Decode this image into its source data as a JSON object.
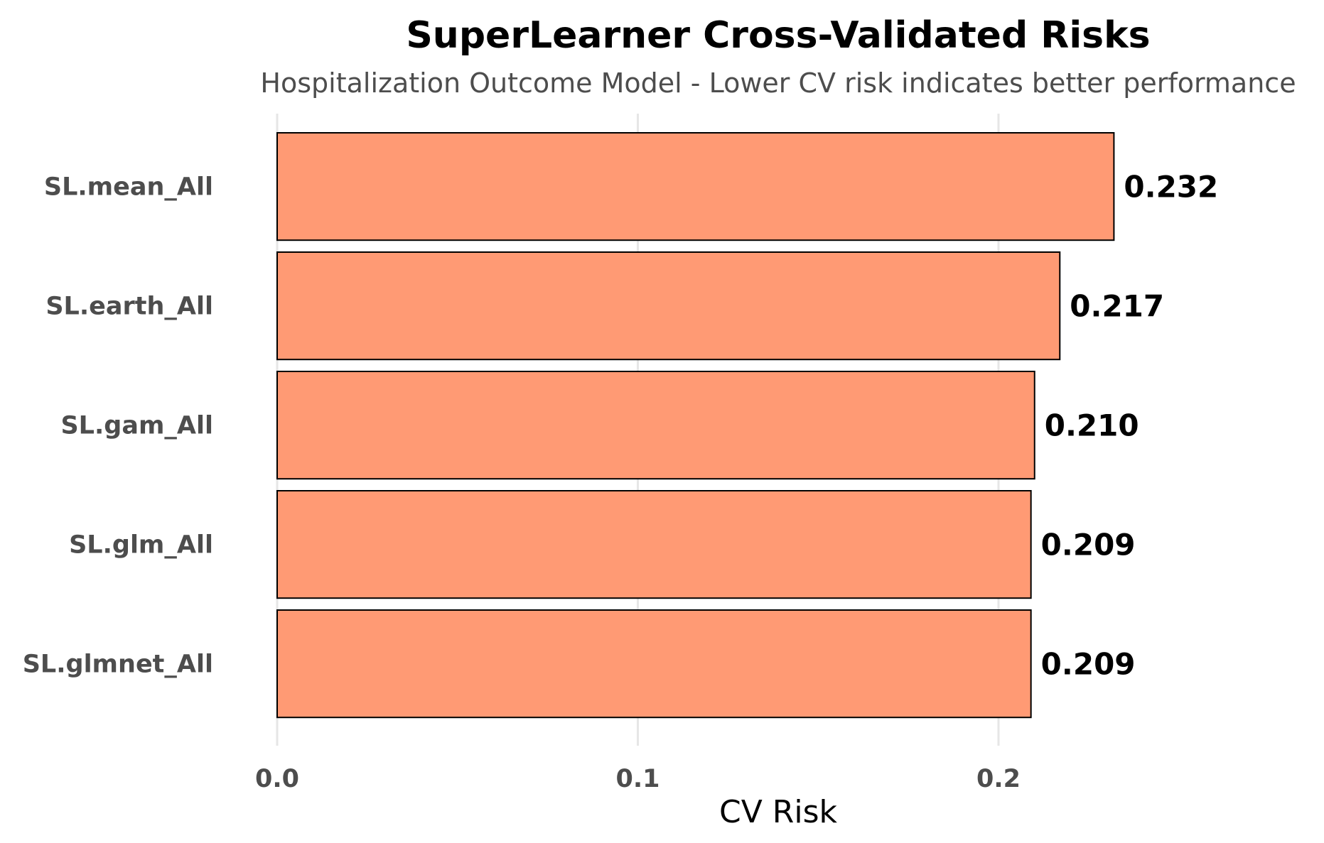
{
  "chart_data": {
    "type": "bar",
    "orientation": "horizontal",
    "title": "SuperLearner Cross-Validated Risks",
    "subtitle": "Hospitalization Outcome Model - Lower CV risk indicates better performance",
    "xlabel": "CV Risk",
    "ylabel": "",
    "categories": [
      "SL.mean_All",
      "SL.earth_All",
      "SL.gam_All",
      "SL.glm_All",
      "SL.glmnet_All"
    ],
    "values": [
      0.232,
      0.217,
      0.21,
      0.209,
      0.209
    ],
    "data_labels": [
      "0.232",
      "0.217",
      "0.210",
      "0.209",
      "0.209"
    ],
    "x_ticks": [
      0.0,
      0.1,
      0.2
    ],
    "x_tick_labels": [
      "0.0",
      "0.1",
      "0.2"
    ],
    "xlim": [
      0,
      0.25
    ],
    "grid": true,
    "legend": "none",
    "colors": {
      "bar_fill": "#ff9a74",
      "bar_stroke": "#000000",
      "grid": "#e6e6e6"
    }
  }
}
